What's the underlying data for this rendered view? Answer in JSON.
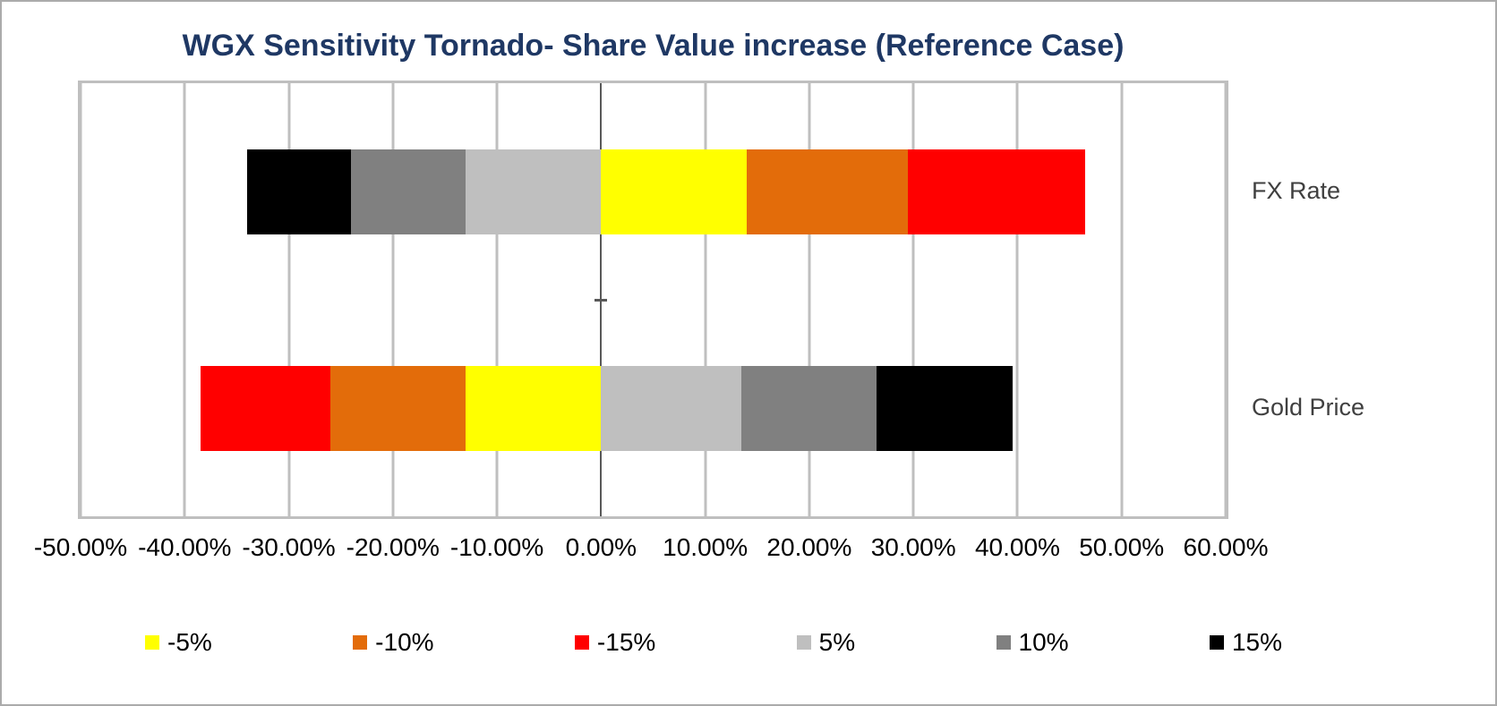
{
  "chart_data": {
    "type": "bar",
    "variant": "tornado-stacked-horizontal",
    "title": "WGX Sensitivity Tornado- Share Value increase (Reference Case)",
    "title_color": "#1F3864",
    "categories": [
      "FX Rate",
      "Gold Price"
    ],
    "x_axis": {
      "min": -50,
      "max": 60,
      "tick_step": 10,
      "grid": true,
      "ticks": [
        {
          "value": -50,
          "label": "-50.00%"
        },
        {
          "value": -40,
          "label": "-40.00%"
        },
        {
          "value": -30,
          "label": "-30.00%"
        },
        {
          "value": -20,
          "label": "-20.00%"
        },
        {
          "value": -10,
          "label": "-10.00%"
        },
        {
          "value": 0,
          "label": "0.00%"
        },
        {
          "value": 10,
          "label": "10.00%"
        },
        {
          "value": 20,
          "label": "20.00%"
        },
        {
          "value": 30,
          "label": "30.00%"
        },
        {
          "value": 40,
          "label": "40.00%"
        },
        {
          "value": 50,
          "label": "50.00%"
        },
        {
          "value": 60,
          "label": "60.00%"
        }
      ]
    },
    "legend_position": "bottom",
    "legend": [
      "-5%",
      "-10%",
      "-15%",
      "5%",
      "10%",
      "15%"
    ],
    "colors": {
      "-5%": "#FFFF00",
      "-10%": "#E36C0A",
      "-15%": "#FF0000",
      "5%": "#BFBFBF",
      "10%": "#808080",
      "15%": "#000000"
    },
    "bars": [
      {
        "category": "FX Rate",
        "segments": [
          {
            "legend": "15%",
            "from": -34,
            "to": -24
          },
          {
            "legend": "10%",
            "from": -24,
            "to": -13
          },
          {
            "legend": "5%",
            "from": -13,
            "to": 0
          },
          {
            "legend": "-5%",
            "from": 0,
            "to": 14
          },
          {
            "legend": "-10%",
            "from": 14,
            "to": 29.5
          },
          {
            "legend": "-15%",
            "from": 29.5,
            "to": 46.5
          }
        ]
      },
      {
        "category": "Gold Price",
        "segments": [
          {
            "legend": "-15%",
            "from": -38.5,
            "to": -26
          },
          {
            "legend": "-10%",
            "from": -26,
            "to": -13
          },
          {
            "legend": "-5%",
            "from": -13,
            "to": 0
          },
          {
            "legend": "5%",
            "from": 0,
            "to": 13.5
          },
          {
            "legend": "10%",
            "from": 13.5,
            "to": 26.5
          },
          {
            "legend": "15%",
            "from": 26.5,
            "to": 39.5
          }
        ]
      }
    ]
  }
}
